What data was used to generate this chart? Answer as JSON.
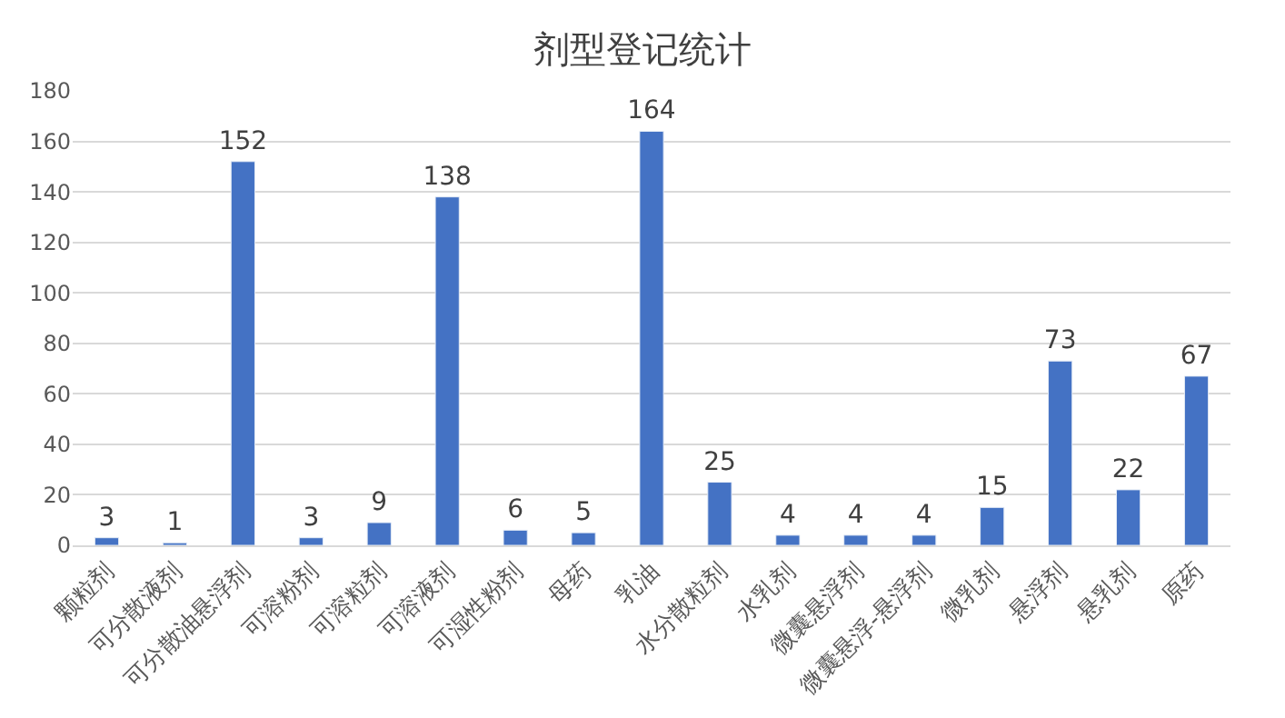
{
  "chart_data": {
    "type": "bar",
    "title": "剂型登记统计",
    "categories": [
      "颗粒剂",
      "可分散液剂",
      "可分散油悬浮剂",
      "可溶粉剂",
      "可溶粒剂",
      "可溶液剂",
      "可湿性粉剂",
      "母药",
      "乳油",
      "水分散粒剂",
      "水乳剂",
      "微囊悬浮剂",
      "微囊悬浮-悬浮剂",
      "微乳剂",
      "悬浮剂",
      "悬乳剂",
      "原药"
    ],
    "values": [
      3,
      1,
      152,
      3,
      9,
      138,
      6,
      5,
      164,
      25,
      4,
      4,
      4,
      15,
      73,
      22,
      67
    ],
    "color": "#4472c4",
    "data_labels": true,
    "grid": "y",
    "ylim": [
      0,
      180
    ],
    "yticks": [
      0,
      20,
      40,
      60,
      80,
      100,
      120,
      140,
      160,
      180
    ]
  }
}
